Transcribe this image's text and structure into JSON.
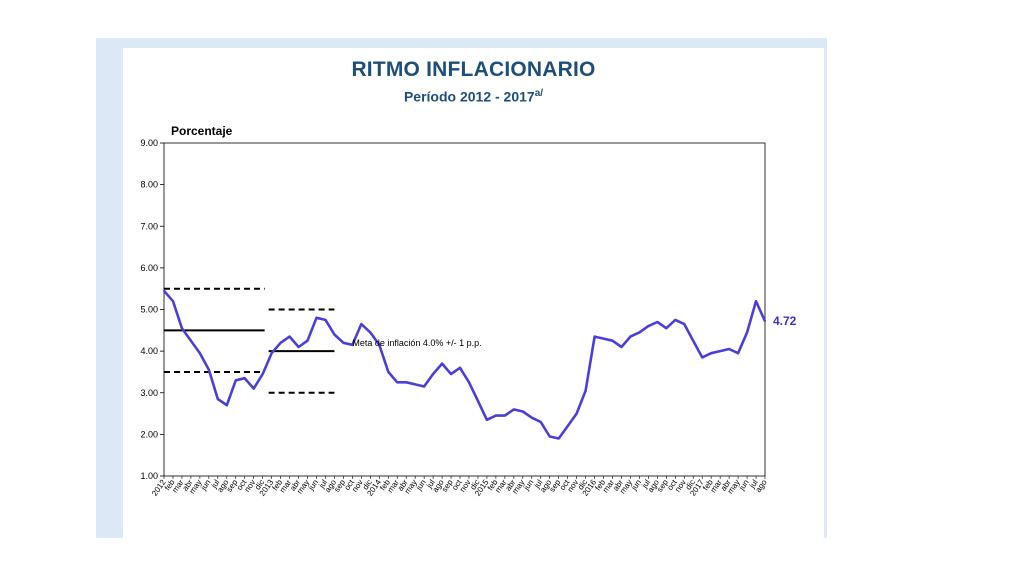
{
  "chart_data": {
    "type": "line",
    "title": "RITMO INFLACIONARIO",
    "subtitle": "Período 2012 - 2017",
    "subtitle_note": "a/",
    "ylabel": "Porcentaje",
    "ylim": [
      1.0,
      9.0
    ],
    "yticks": [
      "1.00",
      "2.00",
      "3.00",
      "4.00",
      "5.00",
      "6.00",
      "7.00",
      "8.00",
      "9.00"
    ],
    "x": [
      "2012",
      "feb",
      "mar",
      "abr",
      "may",
      "jun",
      "jul",
      "ago",
      "sep",
      "oct",
      "nov",
      "dic",
      "2013",
      "feb",
      "mar",
      "abr",
      "may",
      "jun",
      "jul",
      "ago",
      "sep",
      "oct",
      "nov",
      "dic",
      "2014",
      "feb",
      "mar",
      "abr",
      "may",
      "jun",
      "jul",
      "ago",
      "sep",
      "oct",
      "nov",
      "dic",
      "2015",
      "feb",
      "mar",
      "abr",
      "may",
      "jun",
      "jul",
      "ago",
      "sep",
      "oct",
      "nov",
      "dic",
      "2016",
      "feb",
      "mar",
      "abr",
      "may",
      "jun",
      "jul",
      "ago",
      "sep",
      "oct",
      "nov",
      "dic",
      "2017",
      "feb",
      "mar",
      "abr",
      "may",
      "jun",
      "jul",
      "ago"
    ],
    "series": [
      {
        "name": "",
        "color": "#4b3fd9",
        "values": [
          5.45,
          5.2,
          4.55,
          4.25,
          3.95,
          3.55,
          2.85,
          2.7,
          3.3,
          3.35,
          3.1,
          3.45,
          3.95,
          4.2,
          4.35,
          4.1,
          4.25,
          4.8,
          4.75,
          4.4,
          4.2,
          4.15,
          4.65,
          4.45,
          4.15,
          3.5,
          3.25,
          3.25,
          3.2,
          3.15,
          3.45,
          3.7,
          3.45,
          3.6,
          3.25,
          2.8,
          2.35,
          2.45,
          2.45,
          2.6,
          2.55,
          2.4,
          2.3,
          1.95,
          1.9,
          2.2,
          2.5,
          3.05,
          4.35,
          4.3,
          4.25,
          4.1,
          4.35,
          4.45,
          4.6,
          4.7,
          4.55,
          4.75,
          4.65,
          4.25,
          3.85,
          3.95,
          4.0,
          4.05,
          3.95,
          4.45,
          5.2,
          4.72
        ]
      }
    ],
    "bands": [
      {
        "from": "2012",
        "to": "dic",
        "center": 4.5,
        "lower": 3.5,
        "upper": 5.5
      },
      {
        "from": "2013",
        "to": "ago",
        "center": 4.0,
        "lower": 3.0,
        "upper": 5.0
      }
    ],
    "band_annotation": "Meta de inflación 4.0% +/- 1 p.p.",
    "last_value_label": "4.72",
    "grid": false,
    "legend": "none"
  }
}
